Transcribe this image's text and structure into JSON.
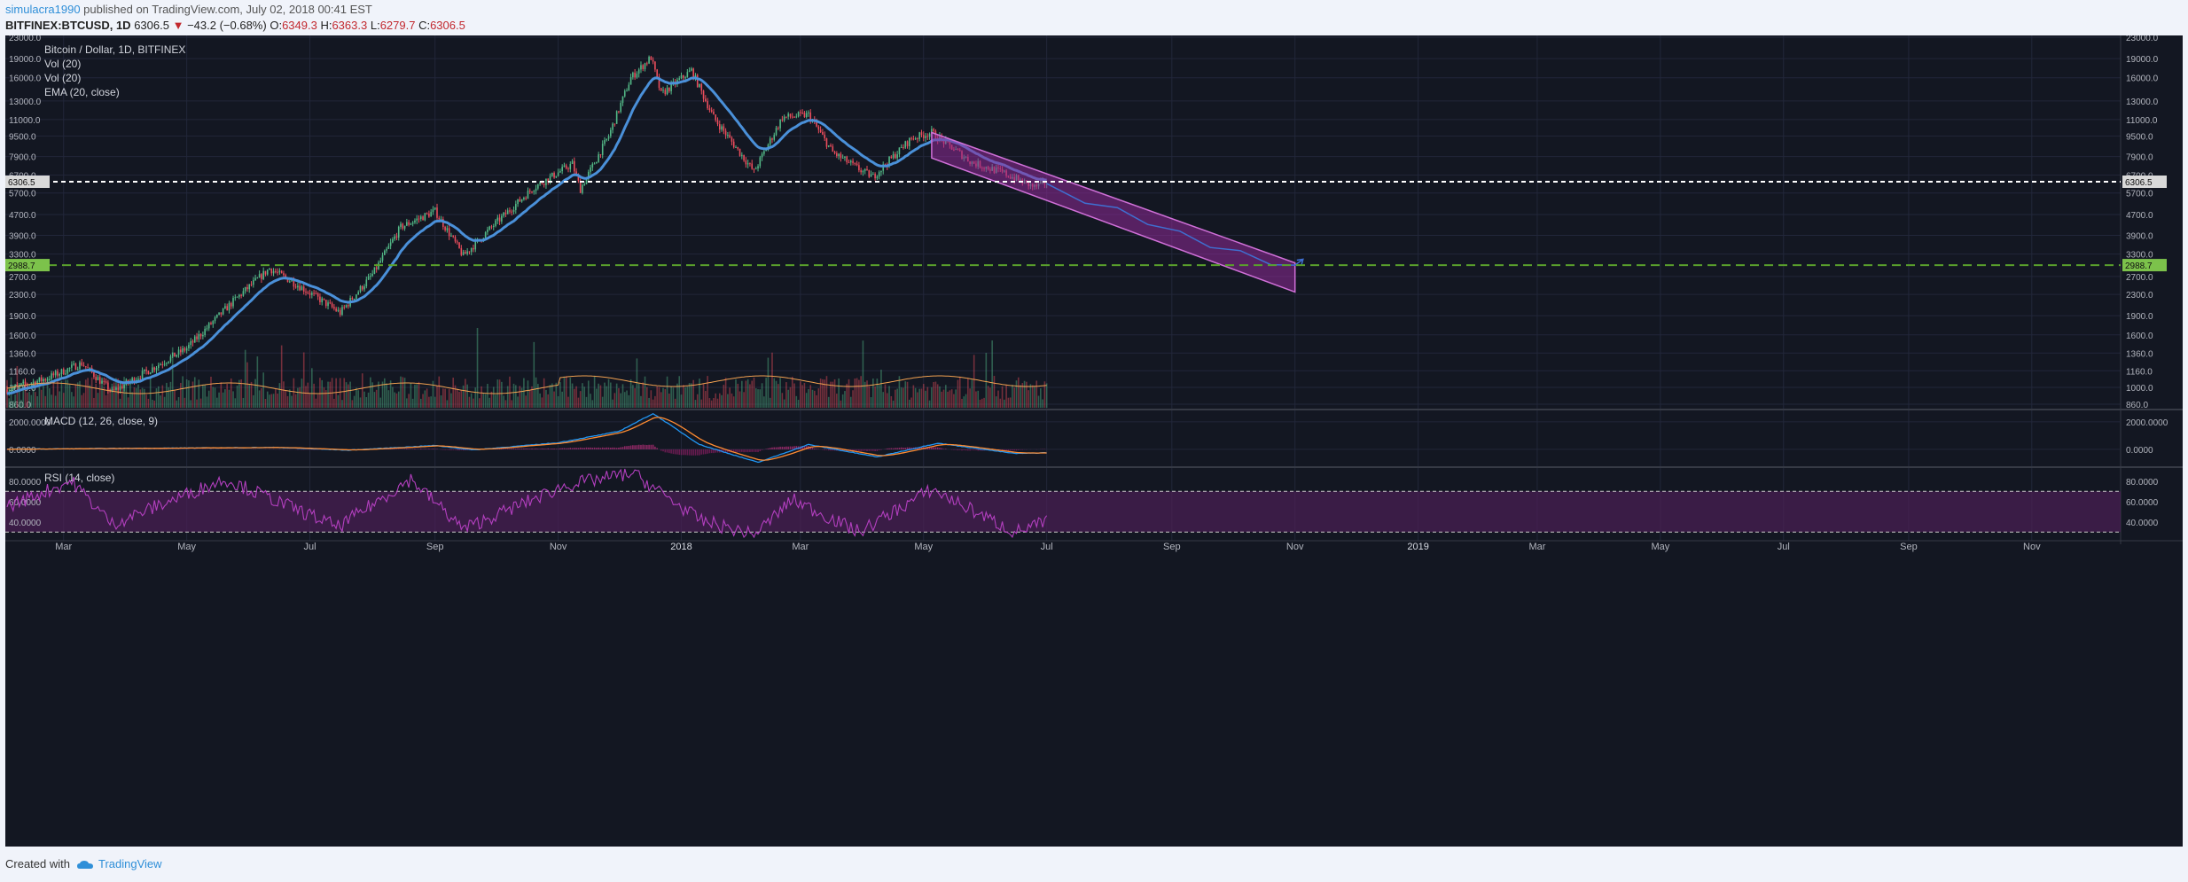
{
  "header": {
    "username": "simulacra1990",
    "published_text": "published on TradingView.com, July 02, 2018 00:41 EST",
    "symbol": "BITFINEX:BTCUSD, 1D",
    "last": "6306.5",
    "change_arrow": "▼",
    "change": "−43.2 (−0.68%)",
    "o_label": "O:",
    "o_value": "6349.3",
    "h_label": "H:",
    "h_value": "6363.3",
    "l_label": "L:",
    "l_value": "6279.7",
    "c_label": "C:",
    "c_value": "6306.5"
  },
  "footer": {
    "created_with": "Created with",
    "brand": "TradingView"
  },
  "colors": {
    "background": "#131722",
    "grid": "#22273a",
    "up": "#53b987",
    "down": "#eb4d5c",
    "ema": "#4a90d9",
    "volume_ma": "#f0a050",
    "macd": "#2196f3",
    "signal": "#ff8c32",
    "rsi": "#b33fbf",
    "channel": "#8f2a98",
    "projection": "#3f6fd0",
    "support_line": "#5aa02c",
    "price_line": "#ffffff"
  },
  "chart_data": [
    {
      "type": "candlestick",
      "panel": "price",
      "title": "Bitcoin / Dollar, 1D, BITFINEX",
      "indicators": [
        "Vol (20)",
        "Vol (20)",
        "EMA (20, close)"
      ],
      "y_scale": "log",
      "ylim": [
        860,
        23000
      ],
      "y_ticks": [
        23000,
        19000,
        16000,
        13000,
        11000,
        9500,
        7900,
        6700,
        5700,
        4700,
        3900,
        3300,
        2700,
        2300,
        1900,
        1600,
        1360,
        1160,
        1000,
        860
      ],
      "y_tick_labels": [
        "23000.0",
        "19000.0",
        "16000.0",
        "13000.0",
        "11000.0",
        "9500.0",
        "7900.0",
        "6700.0",
        "5700.0",
        "4700.0",
        "3900.0",
        "3300.0",
        "2700.0",
        "2300.0",
        "1900.0",
        "1600.0",
        "1360.0",
        "1160.0",
        "1000.0",
        "860.0"
      ],
      "x_tick_labels": [
        "Mar",
        "May",
        "Jul",
        "Sep",
        "Nov",
        "2018",
        "Mar",
        "May",
        "Jul",
        "Sep",
        "Nov",
        "2019",
        "Mar",
        "May",
        "Jul",
        "Sep",
        "Nov"
      ],
      "x_tick_dates": [
        "2017-03-01",
        "2017-05-01",
        "2017-07-01",
        "2017-09-01",
        "2017-11-01",
        "2018-01-01",
        "2018-03-01",
        "2018-05-01",
        "2018-07-01",
        "2018-09-01",
        "2018-11-01",
        "2019-01-01",
        "2019-03-01",
        "2019-05-01",
        "2019-07-01",
        "2019-09-01",
        "2019-11-01"
      ],
      "x_range": [
        "2017-02-01",
        "2019-12-15"
      ],
      "close_path": [
        {
          "date": "2017-02-01",
          "close": 980
        },
        {
          "date": "2017-02-20",
          "close": 1080
        },
        {
          "date": "2017-03-10",
          "close": 1240
        },
        {
          "date": "2017-03-25",
          "close": 960
        },
        {
          "date": "2017-04-15",
          "close": 1200
        },
        {
          "date": "2017-05-01",
          "close": 1420
        },
        {
          "date": "2017-05-25",
          "close": 2200
        },
        {
          "date": "2017-06-11",
          "close": 2900
        },
        {
          "date": "2017-06-25",
          "close": 2500
        },
        {
          "date": "2017-07-16",
          "close": 1950
        },
        {
          "date": "2017-08-01",
          "close": 2750
        },
        {
          "date": "2017-08-15",
          "close": 4200
        },
        {
          "date": "2017-09-01",
          "close": 4850
        },
        {
          "date": "2017-09-15",
          "close": 3250
        },
        {
          "date": "2017-10-01",
          "close": 4350
        },
        {
          "date": "2017-10-20",
          "close": 6000
        },
        {
          "date": "2017-11-08",
          "close": 7400
        },
        {
          "date": "2017-11-12",
          "close": 5900
        },
        {
          "date": "2017-11-26",
          "close": 9500
        },
        {
          "date": "2017-12-07",
          "close": 16000
        },
        {
          "date": "2017-12-17",
          "close": 19200
        },
        {
          "date": "2017-12-22",
          "close": 13800
        },
        {
          "date": "2018-01-06",
          "close": 17100
        },
        {
          "date": "2018-01-17",
          "close": 11200
        },
        {
          "date": "2018-02-06",
          "close": 6900
        },
        {
          "date": "2018-02-20",
          "close": 11200
        },
        {
          "date": "2018-03-05",
          "close": 11500
        },
        {
          "date": "2018-03-17",
          "close": 8200
        },
        {
          "date": "2018-04-01",
          "close": 6900
        },
        {
          "date": "2018-04-06",
          "close": 6600
        },
        {
          "date": "2018-04-25",
          "close": 9300
        },
        {
          "date": "2018-05-05",
          "close": 9800
        },
        {
          "date": "2018-05-25",
          "close": 7500
        },
        {
          "date": "2018-06-10",
          "close": 6800
        },
        {
          "date": "2018-06-25",
          "close": 6000
        },
        {
          "date": "2018-07-01",
          "close": 6306.5
        }
      ],
      "price_line": {
        "value": 6306.5,
        "label": "6306.5"
      },
      "support_line": {
        "value": 2988.7,
        "label": "2988.7"
      },
      "channel": {
        "upper": [
          {
            "date": "2018-05-05",
            "value": 9800
          },
          {
            "date": "2018-11-01",
            "value": 3050
          }
        ],
        "lower": [
          {
            "date": "2018-05-05",
            "value": 7800
          },
          {
            "date": "2018-11-01",
            "value": 2350
          }
        ]
      },
      "projection": [
        {
          "date": "2018-07-01",
          "value": 6200
        },
        {
          "date": "2018-07-20",
          "value": 5200
        },
        {
          "date": "2018-08-05",
          "value": 5000
        },
        {
          "date": "2018-08-20",
          "value": 4300
        },
        {
          "date": "2018-09-05",
          "value": 4050
        },
        {
          "date": "2018-09-20",
          "value": 3500
        },
        {
          "date": "2018-10-05",
          "value": 3400
        },
        {
          "date": "2018-10-20",
          "value": 3000
        },
        {
          "date": "2018-11-01",
          "value": 2988.7
        },
        {
          "date": "2018-11-05",
          "value": 3150
        }
      ]
    },
    {
      "type": "line",
      "panel": "macd",
      "title": "MACD (12, 26, close, 9)",
      "ylim": [
        -1100,
        2700
      ],
      "y_ticks": [
        2000,
        0
      ],
      "y_tick_labels": [
        "2000.0000",
        "0.0000"
      ],
      "series": [
        {
          "name": "MACD",
          "points": [
            {
              "date": "2017-02-01",
              "value": 10
            },
            {
              "date": "2017-06-15",
              "value": 140
            },
            {
              "date": "2017-07-20",
              "value": -60
            },
            {
              "date": "2017-09-01",
              "value": 280
            },
            {
              "date": "2017-09-20",
              "value": -40
            },
            {
              "date": "2017-11-01",
              "value": 480
            },
            {
              "date": "2017-12-01",
              "value": 1300
            },
            {
              "date": "2017-12-18",
              "value": 2600
            },
            {
              "date": "2018-01-10",
              "value": 350
            },
            {
              "date": "2018-02-08",
              "value": -950
            },
            {
              "date": "2018-03-05",
              "value": 350
            },
            {
              "date": "2018-04-08",
              "value": -550
            },
            {
              "date": "2018-05-08",
              "value": 450
            },
            {
              "date": "2018-06-15",
              "value": -300
            },
            {
              "date": "2018-07-01",
              "value": -250
            }
          ]
        }
      ]
    },
    {
      "type": "line",
      "panel": "rsi",
      "title": "RSI (14, close)",
      "ylim": [
        25,
        92
      ],
      "y_ticks": [
        80,
        60,
        40
      ],
      "y_tick_labels": [
        "80.0000",
        "60.0000",
        "40.0000"
      ],
      "bands": [
        30,
        70
      ],
      "series": [
        {
          "name": "RSI",
          "points": [
            {
              "date": "2017-02-01",
              "value": 55
            },
            {
              "date": "2017-03-05",
              "value": 80
            },
            {
              "date": "2017-03-25",
              "value": 38
            },
            {
              "date": "2017-05-20",
              "value": 82
            },
            {
              "date": "2017-07-15",
              "value": 35
            },
            {
              "date": "2017-08-20",
              "value": 82
            },
            {
              "date": "2017-09-15",
              "value": 33
            },
            {
              "date": "2017-11-05",
              "value": 76
            },
            {
              "date": "2017-12-08",
              "value": 88
            },
            {
              "date": "2018-01-10",
              "value": 42
            },
            {
              "date": "2018-02-06",
              "value": 27
            },
            {
              "date": "2018-02-25",
              "value": 62
            },
            {
              "date": "2018-03-30",
              "value": 30
            },
            {
              "date": "2018-05-05",
              "value": 72
            },
            {
              "date": "2018-06-15",
              "value": 30
            },
            {
              "date": "2018-07-01",
              "value": 40
            }
          ]
        }
      ]
    }
  ]
}
